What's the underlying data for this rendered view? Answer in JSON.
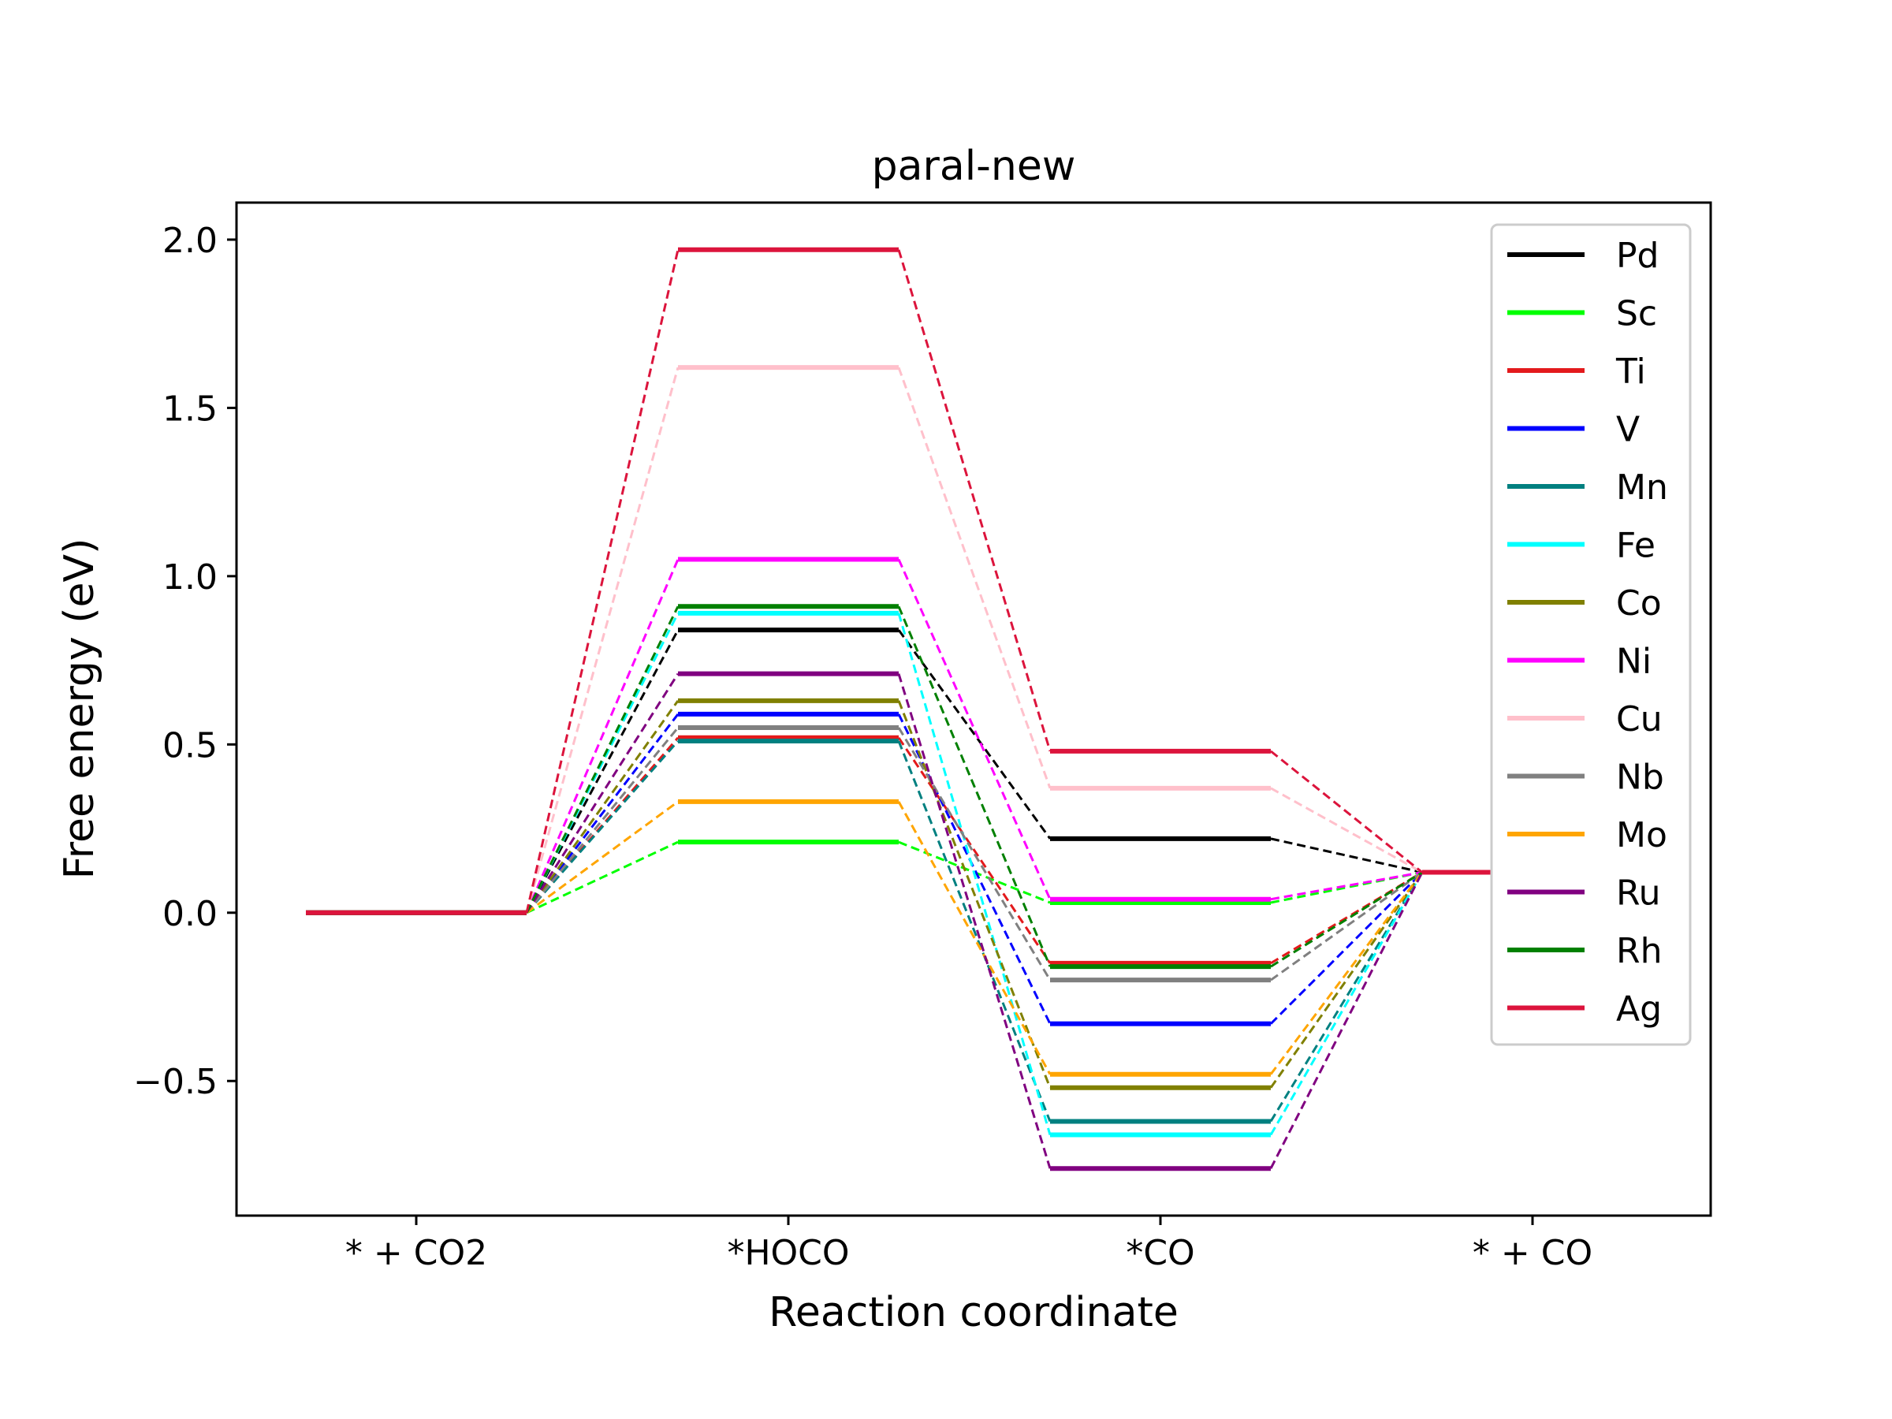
{
  "chart_data": {
    "type": "line",
    "title": "paral-new",
    "xlabel": "Reaction coordinate",
    "ylabel": "Free energy (eV)",
    "categories": [
      "* + CO2",
      "*HOCO",
      "*CO",
      "* + CO"
    ],
    "ylim": [
      -0.9,
      2.11
    ],
    "yticks": [
      -0.5,
      0.0,
      0.5,
      1.0,
      1.5,
      2.0
    ],
    "ytick_labels": [
      "−0.5",
      "0.0",
      "0.5",
      "1.0",
      "1.5",
      "2.0"
    ],
    "grid": false,
    "legend_position": "top-right",
    "series": [
      {
        "name": "Pd",
        "color": "#000000",
        "values": [
          0.0,
          0.84,
          0.22,
          0.12
        ]
      },
      {
        "name": "Sc",
        "color": "#00ff00",
        "values": [
          0.0,
          0.21,
          0.03,
          0.12
        ]
      },
      {
        "name": "Ti",
        "color": "#e31a1c",
        "values": [
          0.0,
          0.52,
          -0.15,
          0.12
        ]
      },
      {
        "name": "V",
        "color": "#0000ff",
        "values": [
          0.0,
          0.59,
          -0.33,
          0.12
        ]
      },
      {
        "name": "Mn",
        "color": "#008080",
        "values": [
          0.0,
          0.51,
          -0.62,
          0.12
        ]
      },
      {
        "name": "Fe",
        "color": "#00ffff",
        "values": [
          0.0,
          0.89,
          -0.66,
          0.12
        ]
      },
      {
        "name": "Co",
        "color": "#808000",
        "values": [
          0.0,
          0.63,
          -0.52,
          0.12
        ]
      },
      {
        "name": "Ni",
        "color": "#ff00ff",
        "values": [
          0.0,
          1.05,
          0.04,
          0.12
        ]
      },
      {
        "name": "Cu",
        "color": "#ffc0cb",
        "values": [
          0.0,
          1.62,
          0.37,
          0.12
        ]
      },
      {
        "name": "Nb",
        "color": "#808080",
        "values": [
          0.0,
          0.55,
          -0.2,
          0.12
        ]
      },
      {
        "name": "Mo",
        "color": "#ffa500",
        "values": [
          0.0,
          0.33,
          -0.48,
          0.12
        ]
      },
      {
        "name": "Ru",
        "color": "#800080",
        "values": [
          0.0,
          0.71,
          -0.76,
          0.12
        ]
      },
      {
        "name": "Rh",
        "color": "#008000",
        "values": [
          0.0,
          0.91,
          -0.16,
          0.12
        ]
      },
      {
        "name": "Ag",
        "color": "#dc143c",
        "values": [
          0.0,
          1.97,
          0.48,
          0.12
        ]
      }
    ]
  }
}
